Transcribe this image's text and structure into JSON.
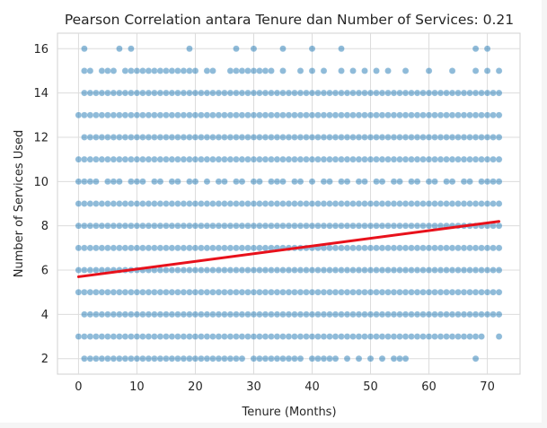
{
  "chart_data": {
    "type": "scatter",
    "title": "Pearson Correlation antara Tenure dan Number of Services: 0.21",
    "xlabel": "Tenure (Months)",
    "ylabel": "Number of Services Used",
    "xlim": [
      -3.6,
      75.6
    ],
    "ylim": [
      1.3,
      16.7
    ],
    "xticks": [
      0,
      10,
      20,
      30,
      40,
      50,
      60,
      70
    ],
    "yticks": [
      2,
      4,
      6,
      8,
      10,
      12,
      14,
      16
    ],
    "grid": true,
    "point_color": "#1f77b4",
    "regression_color": "#e8111b",
    "regression_line": {
      "x": [
        0,
        72
      ],
      "y": [
        5.7,
        8.2
      ]
    },
    "series": [
      {
        "points_by_level": {
          "2": [
            1,
            2,
            3,
            4,
            5,
            6,
            7,
            8,
            9,
            10,
            11,
            12,
            13,
            14,
            15,
            16,
            17,
            18,
            19,
            20,
            21,
            22,
            23,
            24,
            25,
            26,
            27,
            28,
            30,
            31,
            32,
            33,
            34,
            35,
            36,
            37,
            38,
            40,
            41,
            42,
            43,
            44,
            46,
            48,
            50,
            52,
            54,
            55,
            56,
            68
          ],
          "3": [
            0,
            1,
            2,
            3,
            4,
            5,
            6,
            7,
            8,
            9,
            10,
            11,
            12,
            13,
            14,
            15,
            16,
            17,
            18,
            19,
            20,
            21,
            22,
            23,
            24,
            25,
            26,
            27,
            28,
            29,
            30,
            31,
            32,
            33,
            34,
            35,
            36,
            37,
            38,
            39,
            40,
            41,
            42,
            43,
            44,
            45,
            46,
            47,
            48,
            49,
            50,
            51,
            52,
            53,
            54,
            55,
            56,
            57,
            58,
            59,
            60,
            61,
            62,
            63,
            64,
            65,
            66,
            67,
            68,
            69,
            72
          ],
          "4": [
            1,
            2,
            3,
            4,
            5,
            6,
            7,
            8,
            9,
            10,
            11,
            12,
            13,
            14,
            15,
            16,
            17,
            18,
            19,
            20,
            21,
            22,
            23,
            24,
            25,
            26,
            27,
            28,
            29,
            30,
            31,
            32,
            33,
            34,
            35,
            36,
            37,
            38,
            39,
            40,
            41,
            42,
            43,
            44,
            45,
            46,
            47,
            48,
            49,
            50,
            51,
            52,
            53,
            54,
            55,
            56,
            57,
            58,
            59,
            60,
            61,
            62,
            63,
            64,
            65,
            66,
            67,
            68,
            69,
            70,
            71,
            72
          ],
          "5": [
            0,
            1,
            2,
            3,
            4,
            5,
            6,
            7,
            8,
            9,
            10,
            11,
            12,
            13,
            14,
            15,
            16,
            17,
            18,
            19,
            20,
            21,
            22,
            23,
            24,
            25,
            26,
            27,
            28,
            29,
            30,
            31,
            32,
            33,
            34,
            35,
            36,
            37,
            38,
            39,
            40,
            41,
            42,
            43,
            44,
            45,
            46,
            47,
            48,
            49,
            50,
            51,
            52,
            53,
            54,
            55,
            56,
            57,
            58,
            59,
            60,
            61,
            62,
            63,
            64,
            65,
            66,
            67,
            68,
            69,
            70,
            71,
            72
          ],
          "6": [
            0,
            1,
            2,
            3,
            4,
            5,
            6,
            7,
            8,
            9,
            10,
            11,
            12,
            13,
            14,
            15,
            16,
            17,
            18,
            19,
            20,
            21,
            22,
            23,
            24,
            25,
            26,
            27,
            28,
            29,
            30,
            31,
            32,
            33,
            34,
            35,
            36,
            37,
            38,
            39,
            40,
            41,
            42,
            43,
            44,
            45,
            46,
            47,
            48,
            49,
            50,
            51,
            52,
            53,
            54,
            55,
            56,
            57,
            58,
            59,
            60,
            61,
            62,
            63,
            64,
            65,
            66,
            67,
            68,
            69,
            70,
            71,
            72
          ],
          "7": [
            0,
            1,
            2,
            3,
            4,
            5,
            6,
            7,
            8,
            9,
            10,
            11,
            12,
            13,
            14,
            15,
            16,
            17,
            18,
            19,
            20,
            21,
            22,
            23,
            24,
            25,
            26,
            27,
            28,
            29,
            30,
            31,
            32,
            33,
            34,
            35,
            36,
            37,
            38,
            39,
            40,
            41,
            42,
            43,
            44,
            45,
            46,
            47,
            48,
            49,
            50,
            51,
            52,
            53,
            54,
            55,
            56,
            57,
            58,
            59,
            60,
            61,
            62,
            63,
            64,
            65,
            66,
            67,
            68,
            69,
            70,
            71,
            72
          ],
          "8": [
            0,
            1,
            2,
            3,
            4,
            5,
            6,
            7,
            8,
            9,
            10,
            11,
            12,
            13,
            14,
            15,
            16,
            17,
            18,
            19,
            20,
            21,
            22,
            23,
            24,
            25,
            26,
            27,
            28,
            29,
            30,
            31,
            32,
            33,
            34,
            35,
            36,
            37,
            38,
            39,
            40,
            41,
            42,
            43,
            44,
            45,
            46,
            47,
            48,
            49,
            50,
            51,
            52,
            53,
            54,
            55,
            56,
            57,
            58,
            59,
            60,
            61,
            62,
            63,
            64,
            65,
            66,
            67,
            68,
            69,
            70,
            71,
            72
          ],
          "9": [
            0,
            1,
            2,
            3,
            4,
            5,
            6,
            7,
            8,
            9,
            10,
            11,
            12,
            13,
            14,
            15,
            16,
            17,
            18,
            19,
            20,
            21,
            22,
            23,
            24,
            25,
            26,
            27,
            28,
            29,
            30,
            31,
            32,
            33,
            34,
            35,
            36,
            37,
            38,
            39,
            40,
            41,
            42,
            43,
            44,
            45,
            46,
            47,
            48,
            49,
            50,
            51,
            52,
            53,
            54,
            55,
            56,
            57,
            58,
            59,
            60,
            61,
            62,
            63,
            64,
            65,
            66,
            67,
            68,
            69,
            70,
            71,
            72
          ],
          "10": [
            0,
            1,
            2,
            3,
            5,
            6,
            7,
            9,
            10,
            11,
            13,
            14,
            16,
            17,
            19,
            20,
            22,
            24,
            25,
            27,
            28,
            30,
            31,
            33,
            34,
            35,
            37,
            38,
            40,
            42,
            43,
            45,
            46,
            48,
            49,
            51,
            52,
            54,
            55,
            57,
            58,
            60,
            61,
            63,
            64,
            66,
            67,
            69,
            70,
            71,
            72
          ],
          "11": [
            0,
            1,
            2,
            3,
            4,
            5,
            6,
            7,
            8,
            9,
            10,
            11,
            12,
            13,
            14,
            15,
            16,
            17,
            18,
            19,
            20,
            21,
            22,
            23,
            24,
            25,
            26,
            27,
            28,
            29,
            30,
            31,
            32,
            33,
            34,
            35,
            36,
            37,
            38,
            39,
            40,
            41,
            42,
            43,
            44,
            45,
            46,
            47,
            48,
            49,
            50,
            51,
            52,
            53,
            54,
            55,
            56,
            57,
            58,
            59,
            60,
            61,
            62,
            63,
            64,
            65,
            66,
            67,
            68,
            69,
            70,
            71,
            72
          ],
          "12": [
            1,
            2,
            3,
            4,
            5,
            6,
            7,
            8,
            9,
            10,
            11,
            12,
            13,
            14,
            15,
            16,
            17,
            18,
            19,
            20,
            21,
            22,
            23,
            24,
            25,
            26,
            27,
            28,
            29,
            30,
            31,
            32,
            33,
            34,
            35,
            36,
            37,
            38,
            39,
            40,
            41,
            42,
            43,
            44,
            45,
            46,
            47,
            48,
            49,
            50,
            51,
            52,
            53,
            54,
            55,
            56,
            57,
            58,
            59,
            60,
            61,
            62,
            63,
            64,
            65,
            66,
            67,
            68,
            69,
            70,
            71,
            72
          ],
          "13": [
            0,
            1,
            2,
            3,
            4,
            5,
            6,
            7,
            8,
            9,
            10,
            11,
            12,
            13,
            14,
            15,
            16,
            17,
            18,
            19,
            20,
            21,
            22,
            23,
            24,
            25,
            26,
            27,
            28,
            29,
            30,
            31,
            32,
            33,
            34,
            35,
            36,
            37,
            38,
            39,
            40,
            41,
            42,
            43,
            44,
            45,
            46,
            47,
            48,
            49,
            50,
            51,
            52,
            53,
            54,
            55,
            56,
            57,
            58,
            59,
            60,
            61,
            62,
            63,
            64,
            65,
            66,
            67,
            68,
            69,
            70,
            71,
            72
          ],
          "14": [
            1,
            2,
            3,
            4,
            5,
            6,
            7,
            8,
            9,
            10,
            11,
            12,
            13,
            14,
            15,
            16,
            17,
            18,
            19,
            20,
            21,
            22,
            23,
            24,
            25,
            26,
            27,
            28,
            29,
            30,
            31,
            32,
            33,
            34,
            35,
            36,
            37,
            38,
            39,
            40,
            41,
            42,
            43,
            44,
            45,
            46,
            47,
            48,
            49,
            50,
            51,
            52,
            53,
            54,
            55,
            56,
            57,
            58,
            59,
            60,
            61,
            62,
            63,
            64,
            65,
            66,
            67,
            68,
            69,
            70,
            71,
            72
          ],
          "15": [
            1,
            2,
            4,
            5,
            6,
            8,
            9,
            10,
            11,
            12,
            13,
            14,
            15,
            16,
            17,
            18,
            19,
            20,
            22,
            23,
            26,
            27,
            28,
            29,
            30,
            31,
            32,
            33,
            35,
            38,
            40,
            42,
            45,
            47,
            49,
            51,
            53,
            56,
            60,
            64,
            68,
            70,
            72
          ],
          "16": [
            1,
            7,
            9,
            19,
            27,
            30,
            35,
            40,
            45,
            68,
            70
          ]
        }
      }
    ]
  }
}
